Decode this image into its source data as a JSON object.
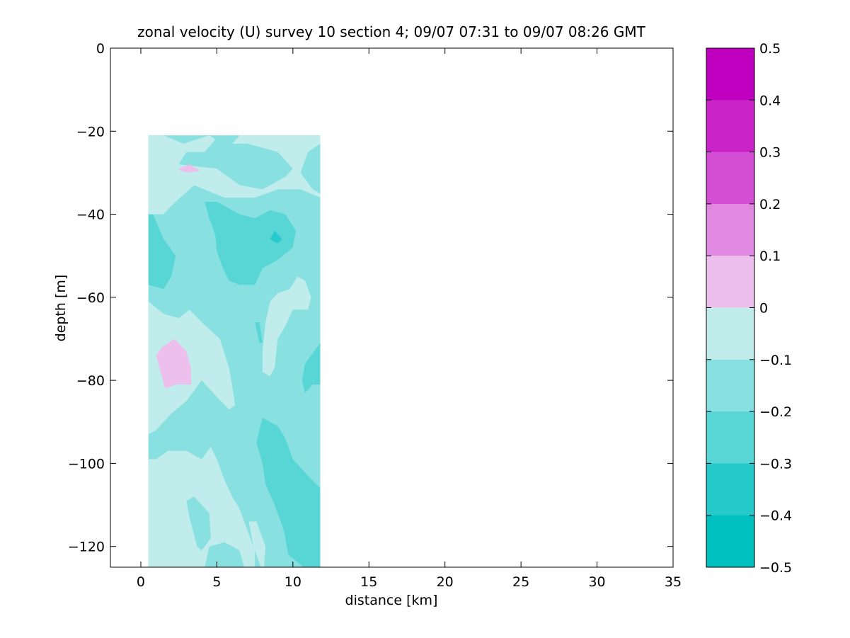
{
  "chart_data": {
    "type": "heatmap",
    "title": "zonal velocity (U) survey 10 section 4; 09/07 07:31 to 09/07 08:26 GMT",
    "xlabel": "distance [km]",
    "ylabel": "depth [m]",
    "xlim": [
      -2,
      35
    ],
    "ylim": [
      -125,
      0
    ],
    "xticks": [
      0,
      5,
      10,
      15,
      20,
      25,
      30,
      35
    ],
    "yticks": [
      0,
      -20,
      -40,
      -60,
      -80,
      -100,
      -120
    ],
    "data_extent": {
      "x": [
        0.5,
        11.8
      ],
      "y": [
        -125,
        -21
      ]
    },
    "background_level": -0.15,
    "regions": [
      {
        "level": -0.05,
        "poly": [
          [
            0.5,
            -21
          ],
          [
            1.5,
            -21
          ],
          [
            2.8,
            -23
          ],
          [
            4.5,
            -21
          ],
          [
            4.9,
            -22
          ],
          [
            4.2,
            -25
          ],
          [
            3.0,
            -25
          ],
          [
            2.5,
            -28
          ],
          [
            5.0,
            -29
          ],
          [
            6.5,
            -33
          ],
          [
            8.0,
            -34
          ],
          [
            9.5,
            -31
          ],
          [
            10.0,
            -29
          ],
          [
            9.0,
            -25
          ],
          [
            7.0,
            -23
          ],
          [
            6.0,
            -23
          ],
          [
            6.5,
            -21
          ],
          [
            11.8,
            -21
          ],
          [
            11.8,
            -23
          ],
          [
            11.0,
            -25
          ],
          [
            10.5,
            -30
          ],
          [
            11.3,
            -34
          ],
          [
            11.8,
            -35
          ],
          [
            11.8,
            -36
          ],
          [
            10.5,
            -34
          ],
          [
            9.0,
            -34
          ],
          [
            7.5,
            -36
          ],
          [
            5.5,
            -36
          ],
          [
            3.5,
            -33
          ],
          [
            2.0,
            -38
          ],
          [
            1.5,
            -40
          ],
          [
            0.5,
            -40
          ]
        ]
      },
      {
        "level": -0.05,
        "poly": [
          [
            0.5,
            -61
          ],
          [
            1.5,
            -64
          ],
          [
            2.5,
            -65
          ],
          [
            3.2,
            -63
          ],
          [
            4.0,
            -66
          ],
          [
            5.2,
            -70
          ],
          [
            5.8,
            -77
          ],
          [
            6.0,
            -81
          ],
          [
            6.2,
            -86
          ],
          [
            5.8,
            -87
          ],
          [
            5.0,
            -84
          ],
          [
            4.0,
            -80
          ],
          [
            3.0,
            -85
          ],
          [
            2.0,
            -88
          ],
          [
            1.0,
            -92
          ],
          [
            0.5,
            -93
          ]
        ]
      },
      {
        "level": -0.05,
        "poly": [
          [
            10.3,
            -55
          ],
          [
            10.8,
            -56
          ],
          [
            11.2,
            -60
          ],
          [
            11.0,
            -63
          ],
          [
            10.0,
            -63
          ],
          [
            9.5,
            -67
          ],
          [
            9.0,
            -70
          ],
          [
            8.8,
            -77
          ],
          [
            8.5,
            -79
          ],
          [
            8.0,
            -78
          ],
          [
            8.0,
            -73
          ],
          [
            8.2,
            -66
          ],
          [
            8.5,
            -61
          ],
          [
            9.0,
            -59
          ],
          [
            9.8,
            -58
          ]
        ]
      },
      {
        "level": -0.05,
        "poly": [
          [
            0.5,
            -99
          ],
          [
            1.0,
            -99
          ],
          [
            1.8,
            -97
          ],
          [
            3.0,
            -97
          ],
          [
            4.0,
            -99
          ],
          [
            4.6,
            -96
          ],
          [
            5.0,
            -99
          ],
          [
            5.5,
            -104
          ],
          [
            6.0,
            -108
          ],
          [
            6.5,
            -111
          ],
          [
            7.0,
            -116
          ],
          [
            7.5,
            -121
          ],
          [
            7.5,
            -125
          ],
          [
            0.5,
            -125
          ]
        ]
      },
      {
        "level": -0.05,
        "poly": [
          [
            7.1,
            -114
          ],
          [
            7.6,
            -114
          ],
          [
            8.2,
            -120
          ],
          [
            8.1,
            -125
          ],
          [
            7.9,
            -125
          ],
          [
            7.4,
            -120
          ]
        ]
      },
      {
        "level": -0.15,
        "poly": [
          [
            3.0,
            -109
          ],
          [
            3.5,
            -108
          ],
          [
            4.5,
            -112
          ],
          [
            4.6,
            -118
          ],
          [
            4.0,
            -121
          ],
          [
            3.7,
            -120
          ],
          [
            3.2,
            -113
          ]
        ]
      },
      {
        "level": -0.15,
        "poly": [
          [
            4.5,
            -120
          ],
          [
            5.5,
            -119
          ],
          [
            6.5,
            -121
          ],
          [
            6.8,
            -125
          ],
          [
            4.2,
            -125
          ]
        ]
      },
      {
        "level": -0.25,
        "poly": [
          [
            4.2,
            -37
          ],
          [
            5.0,
            -37
          ],
          [
            6.5,
            -40
          ],
          [
            7.5,
            -41
          ],
          [
            8.5,
            -39
          ],
          [
            9.5,
            -40
          ],
          [
            10.2,
            -44
          ],
          [
            10.0,
            -48
          ],
          [
            9.0,
            -51
          ],
          [
            8.0,
            -53
          ],
          [
            7.5,
            -57
          ],
          [
            6.5,
            -57
          ],
          [
            5.8,
            -56
          ],
          [
            5.4,
            -53
          ],
          [
            5.0,
            -49
          ],
          [
            4.9,
            -45
          ],
          [
            4.5,
            -41
          ]
        ]
      },
      {
        "level": -0.25,
        "poly": [
          [
            0.5,
            -40
          ],
          [
            0.8,
            -40
          ],
          [
            1.5,
            -46
          ],
          [
            2.3,
            -50
          ],
          [
            2.0,
            -55
          ],
          [
            1.5,
            -58
          ],
          [
            0.5,
            -57
          ]
        ]
      },
      {
        "level": -0.25,
        "poly": [
          [
            8.0,
            -89
          ],
          [
            9.0,
            -91
          ],
          [
            9.5,
            -94
          ],
          [
            10.0,
            -99
          ],
          [
            10.5,
            -101
          ],
          [
            11.0,
            -103
          ],
          [
            11.8,
            -106
          ],
          [
            11.8,
            -125
          ],
          [
            10.7,
            -125
          ],
          [
            9.7,
            -122
          ],
          [
            9.4,
            -116
          ],
          [
            8.8,
            -110
          ],
          [
            8.2,
            -105
          ],
          [
            8.0,
            -100
          ],
          [
            7.6,
            -95
          ]
        ]
      },
      {
        "level": -0.25,
        "poly": [
          [
            11.2,
            -74
          ],
          [
            11.8,
            -71
          ],
          [
            11.8,
            -81
          ],
          [
            11.3,
            -81
          ],
          [
            10.8,
            -83
          ],
          [
            10.6,
            -80
          ],
          [
            10.8,
            -76
          ]
        ]
      },
      {
        "level": -0.25,
        "poly": [
          [
            7.5,
            -66
          ],
          [
            7.8,
            -66
          ],
          [
            8.0,
            -71
          ],
          [
            7.8,
            -71
          ]
        ]
      },
      {
        "level": -0.25,
        "poly": [
          [
            5.6,
            -44
          ],
          [
            5.8,
            -44
          ],
          [
            5.9,
            -46
          ],
          [
            5.7,
            -47
          ]
        ]
      },
      {
        "level": -0.35,
        "poly": [
          [
            8.8,
            -44
          ],
          [
            9.3,
            -46
          ],
          [
            9.0,
            -47
          ],
          [
            8.5,
            -46
          ]
        ]
      },
      {
        "level": 0.05,
        "poly": [
          [
            2.5,
            -29
          ],
          [
            3.2,
            -28
          ],
          [
            3.9,
            -29.5
          ],
          [
            3.2,
            -30
          ],
          [
            2.6,
            -29.5
          ]
        ]
      },
      {
        "level": 0.05,
        "poly": [
          [
            1.4,
            -72
          ],
          [
            2.2,
            -70
          ],
          [
            3.0,
            -73
          ],
          [
            3.3,
            -77
          ],
          [
            3.3,
            -81
          ],
          [
            2.3,
            -81
          ],
          [
            1.6,
            -82
          ],
          [
            1.3,
            -78
          ],
          [
            1.0,
            -74
          ]
        ]
      }
    ],
    "colorbar": {
      "ticks": [
        "0.5",
        "0.4",
        "0.3",
        "0.2",
        "0.1",
        "0",
        "−0.1",
        "−0.2",
        "−0.3",
        "−0.4",
        "−0.5"
      ],
      "levels": [
        {
          "value": 0.45,
          "color": "#c000c0"
        },
        {
          "value": 0.35,
          "color": "#c923c9"
        },
        {
          "value": 0.25,
          "color": "#d34ed3"
        },
        {
          "value": 0.15,
          "color": "#e188e1"
        },
        {
          "value": 0.05,
          "color": "#edbfed"
        },
        {
          "value": -0.05,
          "color": "#c0ecec"
        },
        {
          "value": -0.15,
          "color": "#88e0e0"
        },
        {
          "value": -0.25,
          "color": "#58d6d6"
        },
        {
          "value": -0.35,
          "color": "#27caca"
        },
        {
          "value": -0.45,
          "color": "#00c0c0"
        }
      ]
    }
  }
}
